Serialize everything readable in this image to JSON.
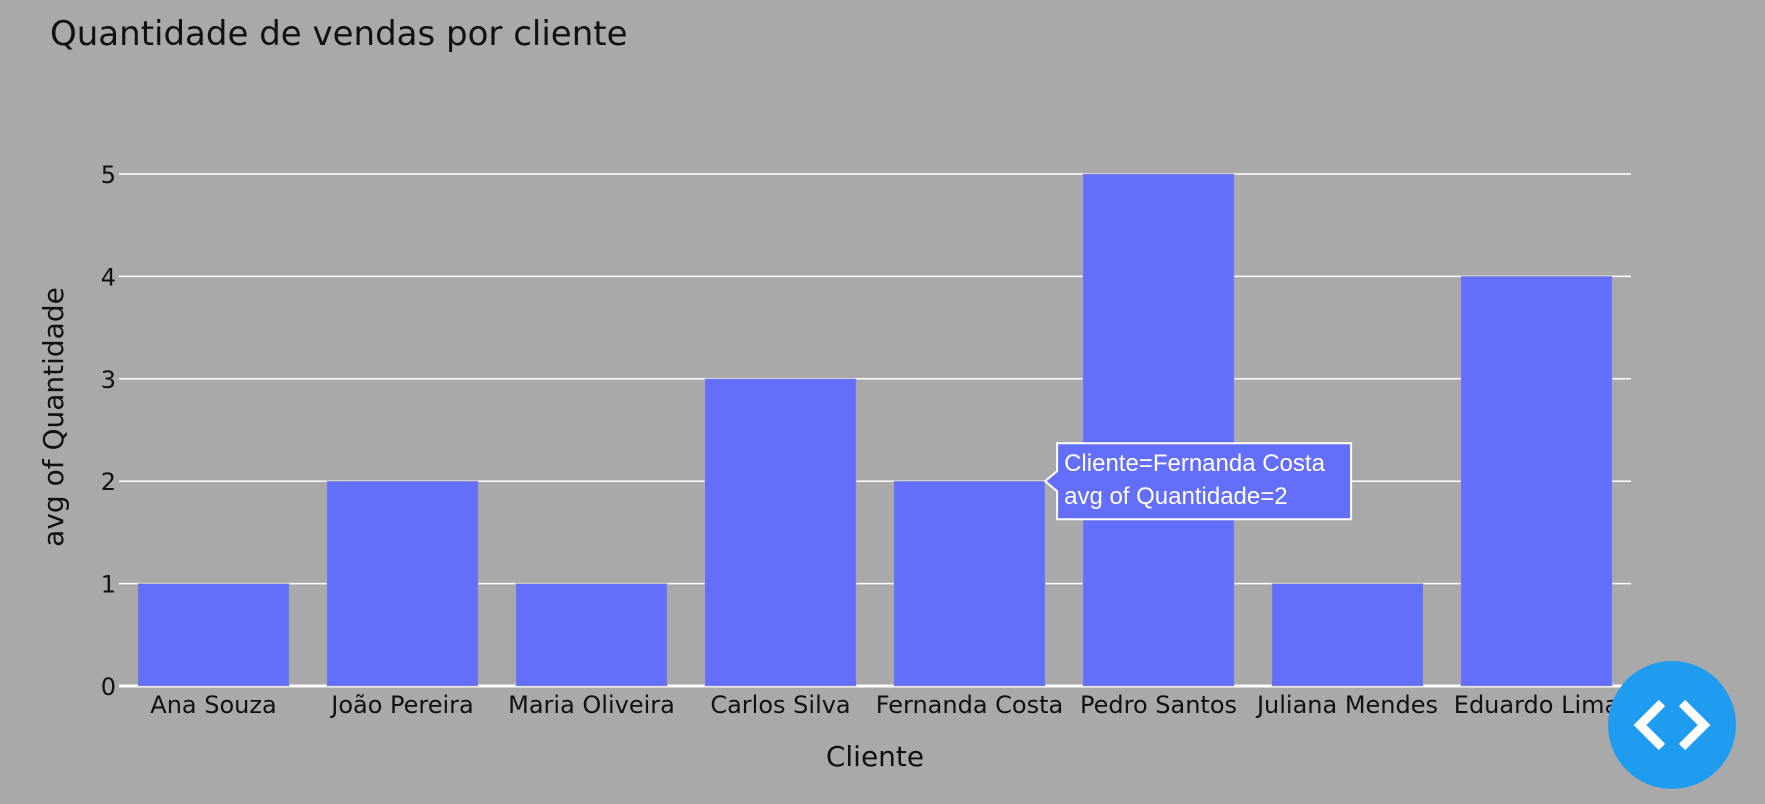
{
  "chart_data": {
    "type": "bar",
    "title": "Quantidade de vendas por cliente",
    "xlabel": "Cliente",
    "ylabel": "avg of Quantidade",
    "categories": [
      "Ana Souza",
      "João Pereira",
      "Maria Oliveira",
      "Carlos Silva",
      "Fernanda Costa",
      "Pedro Santos",
      "Juliana Mendes",
      "Eduardo Lima"
    ],
    "values": [
      1,
      2,
      1,
      3,
      2,
      5,
      1,
      4
    ],
    "ylim": [
      0,
      5
    ],
    "yticks": [
      0,
      1,
      2,
      3,
      4,
      5
    ],
    "grid": true,
    "bar_color": "#636efa",
    "background": "#a9a9a9"
  },
  "tooltip": {
    "category_index": 4,
    "line1": "Cliente=Fernanda Costa",
    "line2": "avg of Quantidade=2"
  },
  "fab": {
    "icon": "code-icon",
    "color": "#1f9cf0"
  }
}
